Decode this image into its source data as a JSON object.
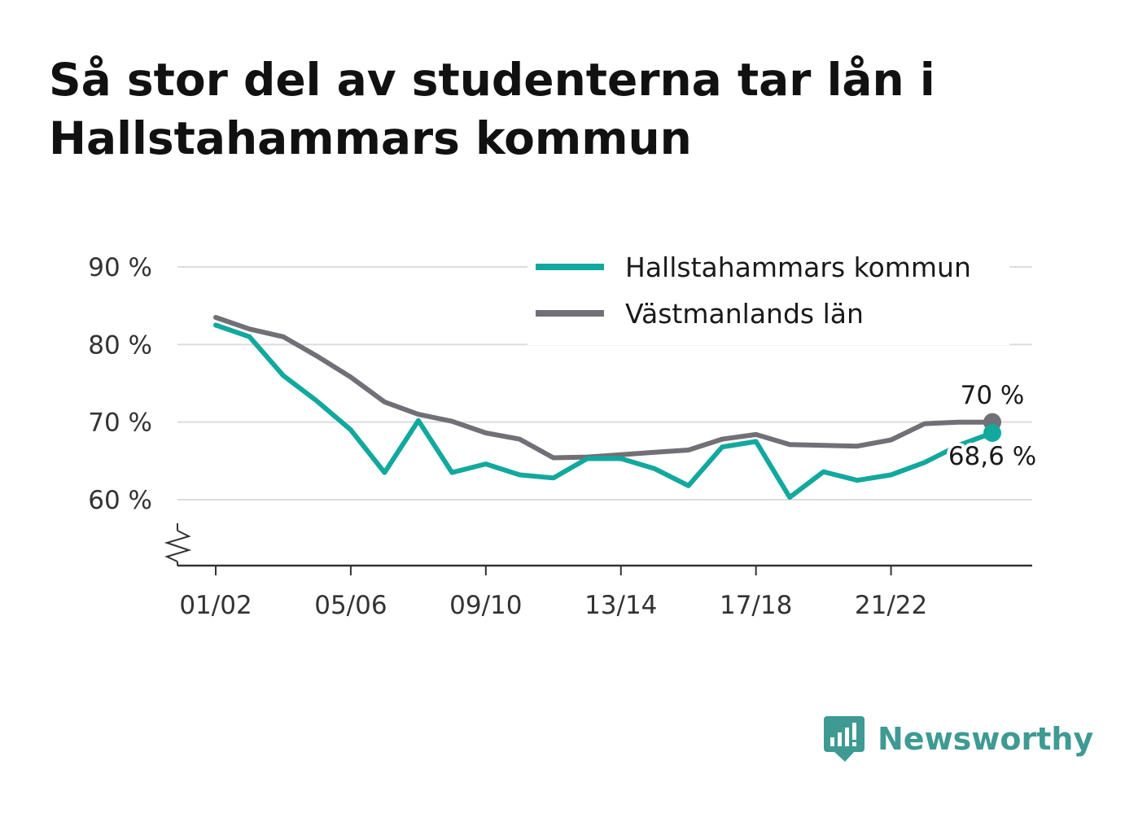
{
  "title": "Så stor del av studenterna tar lån i Hallstahammars kommun",
  "brand": {
    "name": "Newsworthy",
    "icon": "newsworthy-logo-icon",
    "color": "#3e9a92"
  },
  "chart_data": {
    "type": "line",
    "title": "Så stor del av studenterna tar lån i Hallstahammars kommun",
    "x": [
      "01/02",
      "02/03",
      "03/04",
      "04/05",
      "05/06",
      "06/07",
      "07/08",
      "08/09",
      "09/10",
      "10/11",
      "11/12",
      "12/13",
      "13/14",
      "14/15",
      "15/16",
      "16/17",
      "17/18",
      "18/19",
      "19/20",
      "20/21",
      "21/22",
      "22/23",
      "23/24",
      "24/25"
    ],
    "x_ticks": [
      "01/02",
      "05/06",
      "09/10",
      "13/14",
      "17/18",
      "21/22"
    ],
    "series": [
      {
        "name": "Hallstahammars kommun",
        "color": "#13a89e",
        "values": [
          82.5,
          81.0,
          76.0,
          72.7,
          69.0,
          63.5,
          70.2,
          63.5,
          64.6,
          63.2,
          62.8,
          65.3,
          65.3,
          64.0,
          61.8,
          66.8,
          67.5,
          60.3,
          63.6,
          62.5,
          63.2,
          64.8,
          67.0,
          68.6
        ]
      },
      {
        "name": "Västmanlands län",
        "color": "#717076",
        "values": [
          83.5,
          82.0,
          81.0,
          78.5,
          75.8,
          72.6,
          71.0,
          70.1,
          68.6,
          67.8,
          65.4,
          65.5,
          65.8,
          66.1,
          66.4,
          67.8,
          68.4,
          67.1,
          67.0,
          66.9,
          67.7,
          69.8,
          70.0,
          70.0
        ]
      }
    ],
    "y_ticks": [
      "60 %",
      "70 %",
      "80 %",
      "90 %"
    ],
    "y_tick_values": [
      60,
      70,
      80,
      90
    ],
    "ylim": [
      51,
      91
    ],
    "axis_break": true,
    "end_labels": [
      "68,6 %",
      "70 %"
    ],
    "legend_position": "top-right",
    "grid": true
  }
}
